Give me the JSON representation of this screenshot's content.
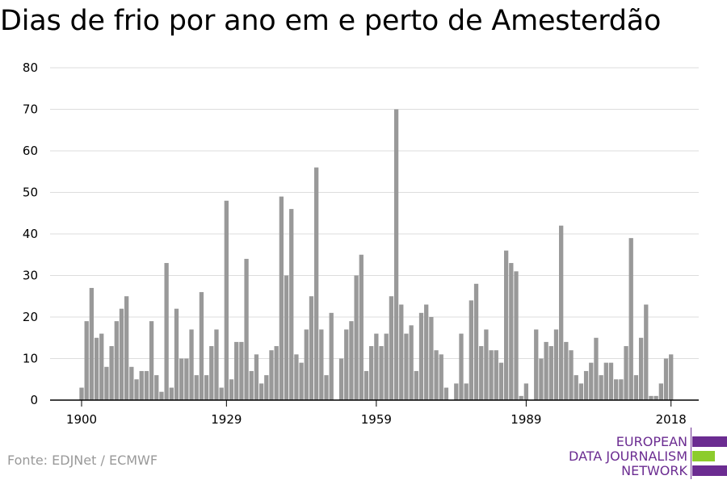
{
  "title": "Dias de frio por ano em e perto de Amesterdão",
  "source": "Fonte: EDJNet / ECMWF",
  "logo": {
    "lines": [
      "EUROPEAN",
      "DATA JOURNALISM",
      "NETWORK"
    ],
    "colors": {
      "purple": "#6b2c91",
      "green": "#8ccc2c"
    }
  },
  "colors": {
    "bar": "#999999",
    "grid": "#dddddd",
    "axis": "#000000",
    "text": "#000000"
  },
  "chart_data": {
    "type": "bar",
    "title": "Dias de frio por ano em e perto de Amesterdão",
    "xlabel": "",
    "ylabel": "",
    "ylim": [
      0,
      80
    ],
    "yticks": [
      0,
      10,
      20,
      30,
      40,
      50,
      60,
      70,
      80
    ],
    "xticks": [
      1900,
      1929,
      1959,
      1989,
      2018
    ],
    "grid": true,
    "categories": [
      1900,
      1901,
      1902,
      1903,
      1904,
      1905,
      1906,
      1907,
      1908,
      1909,
      1910,
      1911,
      1912,
      1913,
      1914,
      1915,
      1916,
      1917,
      1918,
      1919,
      1920,
      1921,
      1922,
      1923,
      1924,
      1925,
      1926,
      1927,
      1928,
      1929,
      1930,
      1931,
      1932,
      1933,
      1934,
      1935,
      1936,
      1937,
      1938,
      1939,
      1940,
      1941,
      1942,
      1943,
      1944,
      1945,
      1946,
      1947,
      1948,
      1949,
      1950,
      1951,
      1952,
      1953,
      1954,
      1955,
      1956,
      1957,
      1958,
      1959,
      1960,
      1961,
      1962,
      1963,
      1964,
      1965,
      1966,
      1967,
      1968,
      1969,
      1970,
      1971,
      1972,
      1973,
      1974,
      1975,
      1976,
      1977,
      1978,
      1979,
      1980,
      1981,
      1982,
      1983,
      1984,
      1985,
      1986,
      1987,
      1988,
      1989,
      1990,
      1991,
      1992,
      1993,
      1994,
      1995,
      1996,
      1997,
      1998,
      1999,
      2000,
      2001,
      2002,
      2003,
      2004,
      2005,
      2006,
      2007,
      2008,
      2009,
      2010,
      2011,
      2012,
      2013,
      2014,
      2015,
      2016,
      2017,
      2018
    ],
    "values": [
      3,
      19,
      27,
      15,
      16,
      8,
      13,
      19,
      22,
      25,
      8,
      5,
      7,
      7,
      19,
      6,
      2,
      33,
      3,
      22,
      10,
      10,
      17,
      6,
      26,
      6,
      13,
      17,
      3,
      48,
      5,
      14,
      14,
      34,
      7,
      11,
      4,
      6,
      12,
      13,
      49,
      30,
      46,
      11,
      9,
      17,
      25,
      56,
      17,
      6,
      21,
      0,
      10,
      17,
      19,
      30,
      35,
      7,
      13,
      16,
      13,
      16,
      25,
      70,
      23,
      16,
      18,
      7,
      21,
      23,
      20,
      12,
      11,
      3,
      0,
      4,
      16,
      4,
      24,
      28,
      13,
      17,
      12,
      12,
      9,
      36,
      33,
      31,
      1,
      4,
      0,
      17,
      10,
      14,
      13,
      17,
      42,
      14,
      12,
      6,
      4,
      7,
      9,
      15,
      6,
      9,
      9,
      5,
      5,
      13,
      39,
      6,
      15,
      23,
      1,
      1,
      4,
      10,
      11
    ]
  }
}
